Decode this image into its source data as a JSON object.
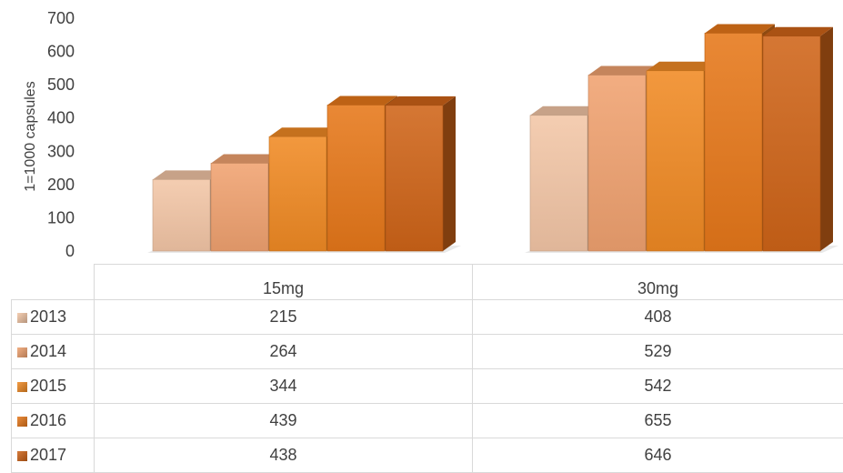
{
  "chart_data": {
    "type": "bar",
    "title": "",
    "xlabel": "",
    "ylabel": "1=1000 capsules",
    "ylim": [
      0,
      700
    ],
    "yticks": [
      "0",
      "100",
      "200",
      "300",
      "400",
      "500",
      "600",
      "700"
    ],
    "categories": [
      "15mg",
      "30mg"
    ],
    "series": [
      {
        "name": "2013",
        "values": [
          215,
          408
        ],
        "color": "#f3c6a6"
      },
      {
        "name": "2014",
        "values": [
          264,
          529
        ],
        "color": "#f0a270"
      },
      {
        "name": "2015",
        "values": [
          344,
          542
        ],
        "color": "#f08a24"
      },
      {
        "name": "2016",
        "values": [
          439,
          655
        ],
        "color": "#e6781a"
      },
      {
        "name": "2017",
        "values": [
          438,
          646
        ],
        "color": "#cf6418"
      }
    ],
    "legend": "data-table",
    "grid": false,
    "style": "3d-column"
  },
  "table": {
    "header": [
      "15mg",
      "30mg"
    ],
    "rows": [
      {
        "label": "2013",
        "values": [
          "215",
          "408"
        ]
      },
      {
        "label": "2014",
        "values": [
          "264",
          "529"
        ]
      },
      {
        "label": "2015",
        "values": [
          "344",
          "542"
        ]
      },
      {
        "label": "2016",
        "values": [
          "439",
          "655"
        ]
      },
      {
        "label": "2017",
        "values": [
          "438",
          "646"
        ]
      }
    ]
  }
}
